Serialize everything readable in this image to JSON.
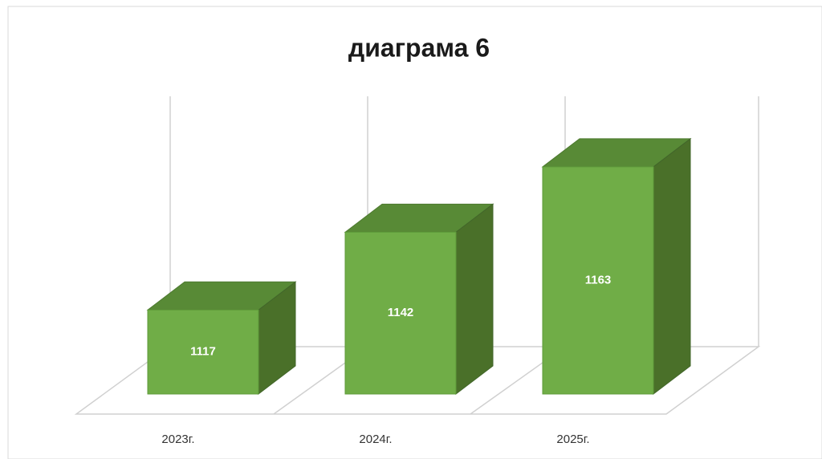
{
  "chart_data": {
    "type": "bar3d",
    "title": "диаграма 6",
    "categories": [
      "2023г.",
      "2024г.",
      "2025г."
    ],
    "values": [
      1117,
      1142,
      1163
    ],
    "color": "#70ad47",
    "ylim": [
      1090,
      1180
    ]
  }
}
